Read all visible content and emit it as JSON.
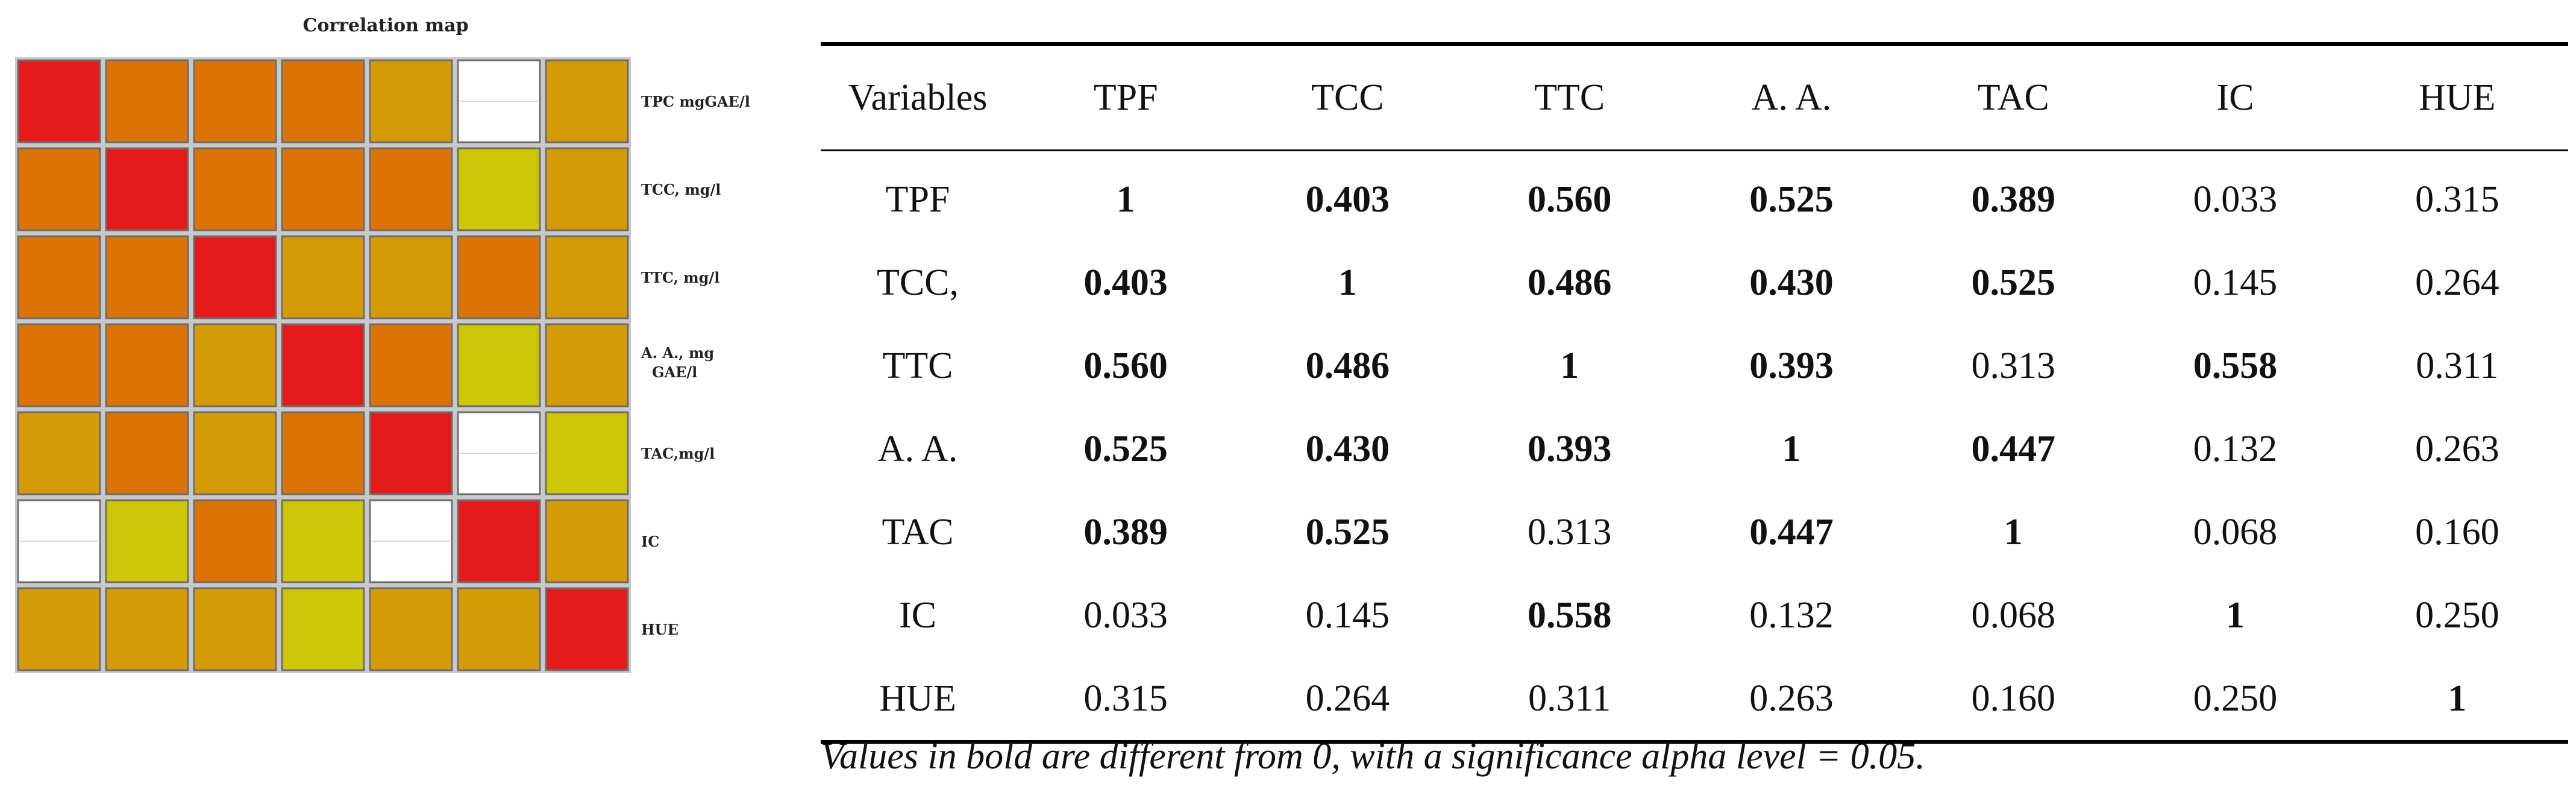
{
  "chart_data": [
    {
      "type": "heatmap",
      "title": "Correlation map",
      "row_labels": [
        "TPC mgGAE/l",
        "TCC, mg/l",
        "TTC, mg/l",
        "A. A., mg GAE/l",
        "TAC,mg/l",
        "IC",
        "HUE"
      ],
      "level_colors": {
        "red": "#e51b1b",
        "orange": "#dd7305",
        "amber": "#d69a05",
        "yellow": "#ccc605",
        "white": "#ffffff"
      },
      "cells": [
        [
          "red",
          "orange",
          "orange",
          "orange",
          "amber",
          "white",
          "amber"
        ],
        [
          "orange",
          "red",
          "orange",
          "orange",
          "orange",
          "yellow",
          "amber"
        ],
        [
          "orange",
          "orange",
          "red",
          "amber",
          "amber",
          "orange",
          "amber"
        ],
        [
          "orange",
          "orange",
          "amber",
          "red",
          "orange",
          "yellow",
          "amber"
        ],
        [
          "amber",
          "orange",
          "amber",
          "orange",
          "red",
          "white",
          "yellow"
        ],
        [
          "white",
          "yellow",
          "orange",
          "yellow",
          "white",
          "red",
          "amber"
        ],
        [
          "amber",
          "amber",
          "amber",
          "yellow",
          "amber",
          "amber",
          "red"
        ]
      ]
    },
    {
      "type": "table",
      "columns": [
        "Variables",
        "TPF",
        "TCC",
        "TTC",
        "A. A.",
        "TAC",
        "IC",
        "HUE"
      ],
      "rows": [
        {
          "label": "TPF",
          "values": [
            "1",
            "0.403",
            "0.560",
            "0.525",
            "0.389",
            "0.033",
            "0.315"
          ],
          "bold": [
            true,
            true,
            true,
            true,
            true,
            false,
            false
          ]
        },
        {
          "label": "TCC,",
          "values": [
            "0.403",
            "1",
            "0.486",
            "0.430",
            "0.525",
            "0.145",
            "0.264"
          ],
          "bold": [
            true,
            true,
            true,
            true,
            true,
            false,
            false
          ]
        },
        {
          "label": "TTC",
          "values": [
            "0.560",
            "0.486",
            "1",
            "0.393",
            "0.313",
            "0.558",
            "0.311"
          ],
          "bold": [
            true,
            true,
            true,
            true,
            false,
            true,
            false
          ]
        },
        {
          "label": "A. A.",
          "values": [
            "0.525",
            "0.430",
            "0.393",
            "1",
            "0.447",
            "0.132",
            "0.263"
          ],
          "bold": [
            true,
            true,
            true,
            true,
            true,
            false,
            false
          ]
        },
        {
          "label": "TAC",
          "values": [
            "0.389",
            "0.525",
            "0.313",
            "0.447",
            "1",
            "0.068",
            "0.160"
          ],
          "bold": [
            true,
            true,
            false,
            true,
            true,
            false,
            false
          ]
        },
        {
          "label": "IC",
          "values": [
            "0.033",
            "0.145",
            "0.558",
            "0.132",
            "0.068",
            "1",
            "0.250"
          ],
          "bold": [
            false,
            false,
            true,
            false,
            false,
            true,
            false
          ]
        },
        {
          "label": "HUE",
          "values": [
            "0.315",
            "0.264",
            "0.311",
            "0.263",
            "0.160",
            "0.250",
            "1"
          ],
          "bold": [
            false,
            false,
            false,
            false,
            false,
            false,
            true
          ]
        }
      ],
      "note": "Values in bold are different from 0, with a significance alpha level = 0.05."
    }
  ]
}
